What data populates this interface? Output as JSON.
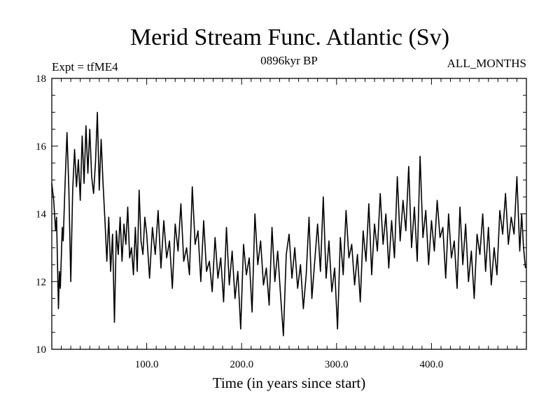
{
  "chart_data": {
    "type": "line",
    "title": "Merid Stream Func. Atlantic (Sv)",
    "left_note": "Expt = tfME4",
    "center_note": "0896kyr BP",
    "right_note": "ALL_MONTHS",
    "xlabel": "Time (in years since start)",
    "ylabel": "",
    "xlim": [
      0,
      500
    ],
    "ylim": [
      10,
      18
    ],
    "xticks": [
      100,
      200,
      300,
      400
    ],
    "xtick_labels": [
      "100.0",
      "200.0",
      "300.0",
      "400.0"
    ],
    "yticks": [
      10,
      12,
      14,
      16,
      18
    ],
    "ytick_labels": [
      "10",
      "12",
      "14",
      "16",
      "18"
    ],
    "series": [
      {
        "name": "Merid Stream Func. Atlantic",
        "color": "#000000",
        "x": [
          0,
          2,
          4,
          5,
          7,
          8,
          9,
          11,
          12,
          14,
          16,
          18,
          20,
          22,
          24,
          26,
          28,
          30,
          32,
          34,
          36,
          38,
          40,
          42,
          44,
          46,
          48,
          50,
          52,
          54,
          56,
          58,
          60,
          62,
          64,
          66,
          68,
          70,
          72,
          74,
          76,
          78,
          80,
          82,
          84,
          86,
          88,
          90,
          92,
          94,
          96,
          98,
          100,
          103,
          106,
          109,
          112,
          115,
          118,
          121,
          124,
          127,
          130,
          133,
          136,
          139,
          142,
          145,
          148,
          151,
          154,
          157,
          160,
          163,
          166,
          169,
          172,
          175,
          178,
          181,
          184,
          187,
          190,
          193,
          196,
          199,
          202,
          205,
          208,
          211,
          214,
          217,
          220,
          223,
          226,
          229,
          232,
          235,
          238,
          241,
          244,
          247,
          250,
          253,
          256,
          259,
          262,
          265,
          268,
          271,
          274,
          277,
          280,
          283,
          286,
          289,
          292,
          295,
          298,
          301,
          304,
          307,
          310,
          313,
          316,
          319,
          322,
          325,
          328,
          331,
          334,
          337,
          340,
          343,
          346,
          349,
          352,
          355,
          358,
          361,
          364,
          367,
          370,
          373,
          376,
          379,
          382,
          385,
          388,
          391,
          394,
          397,
          400,
          403,
          406,
          409,
          412,
          415,
          418,
          421,
          424,
          427,
          430,
          433,
          436,
          439,
          442,
          445,
          448,
          451,
          454,
          457,
          460,
          463,
          466,
          469,
          472,
          475,
          478,
          481,
          484,
          487,
          490,
          493,
          495,
          497,
          499
        ],
        "values": [
          14.9,
          14.4,
          13.5,
          13.9,
          11.2,
          12.3,
          11.8,
          13.6,
          13.2,
          14.9,
          16.4,
          14.7,
          12.0,
          14.7,
          15.9,
          14.8,
          15.6,
          14.4,
          16.3,
          14.9,
          16.6,
          15.2,
          16.5,
          15.1,
          14.6,
          15.5,
          17.0,
          14.7,
          16.2,
          14.9,
          13.8,
          12.6,
          13.9,
          12.3,
          13.4,
          10.8,
          13.5,
          12.8,
          13.9,
          12.6,
          13.7,
          13.1,
          14.2,
          12.7,
          13.0,
          12.2,
          13.6,
          12.3,
          14.7,
          13.2,
          12.8,
          13.9,
          13.4,
          12.1,
          13.6,
          12.8,
          14.1,
          12.4,
          13.8,
          12.7,
          13.2,
          11.8,
          13.7,
          12.9,
          14.3,
          12.6,
          13.0,
          12.2,
          14.8,
          13.1,
          13.5,
          12.0,
          13.8,
          12.3,
          12.6,
          11.7,
          13.3,
          12.1,
          12.7,
          11.4,
          13.6,
          11.9,
          12.9,
          11.5,
          12.3,
          10.6,
          13.1,
          12.2,
          12.7,
          11.1,
          14.0,
          12.5,
          13.2,
          11.9,
          12.4,
          11.3,
          13.6,
          12.0,
          12.9,
          11.6,
          10.4,
          12.8,
          13.4,
          12.1,
          13.0,
          11.8,
          12.5,
          11.2,
          12.2,
          13.9,
          11.5,
          12.6,
          13.7,
          12.3,
          14.5,
          12.1,
          13.2,
          11.7,
          12.4,
          10.6,
          13.3,
          12.2,
          14.1,
          12.7,
          13.1,
          11.9,
          12.8,
          11.4,
          13.5,
          12.6,
          14.3,
          12.2,
          13.7,
          12.9,
          14.6,
          13.1,
          14.0,
          12.4,
          13.8,
          12.7,
          15.1,
          13.2,
          14.4,
          13.5,
          15.4,
          13.0,
          14.2,
          12.6,
          15.7,
          13.3,
          14.1,
          12.5,
          13.8,
          12.9,
          14.4,
          13.3,
          13.6,
          12.1,
          14.0,
          12.7,
          13.2,
          11.8,
          14.2,
          12.5,
          13.7,
          12.0,
          12.9,
          11.5,
          13.4,
          12.8,
          14.0,
          12.3,
          13.6,
          11.9,
          13.0,
          12.2,
          14.1,
          13.4,
          14.6,
          13.1,
          13.9,
          13.4,
          15.1,
          12.9,
          14.0,
          13.0,
          12.4
        ]
      }
    ]
  }
}
